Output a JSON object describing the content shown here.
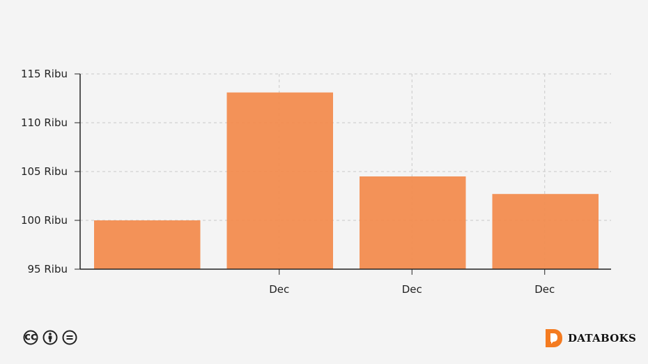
{
  "chart_data": {
    "type": "bar",
    "categories": [
      "",
      "Dec",
      "Dec",
      "Dec"
    ],
    "values": [
      100.0,
      113.1,
      104.5,
      102.7
    ],
    "ylim": [
      95,
      115
    ],
    "yticks": [
      95,
      100,
      105,
      110,
      115
    ],
    "ytick_labels": [
      "95 Ribu",
      "100 Ribu",
      "105 Ribu",
      "110 Ribu",
      "115 Ribu"
    ],
    "title": "",
    "xlabel": "",
    "ylabel": "",
    "grid": true,
    "bar_color": "#f28c4f"
  },
  "footer": {
    "license_icons": [
      "cc-icon",
      "attribution-icon",
      "no-derivatives-icon"
    ],
    "brand": "DATABOKS",
    "brand_color": "#f47b20"
  }
}
